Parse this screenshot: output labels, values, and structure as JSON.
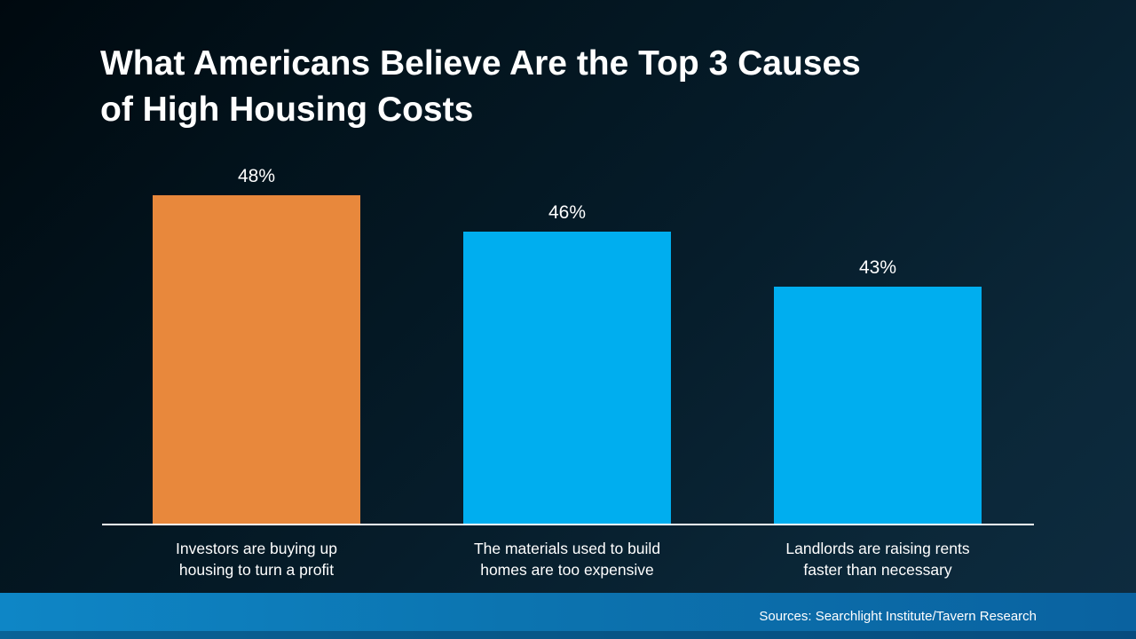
{
  "title": {
    "line1": "What Americans Believe Are the Top 3 Causes",
    "line2": "of High Housing Costs"
  },
  "footer": {
    "source_text": "Sources: Searchlight Institute/Tavern Research"
  },
  "colors": {
    "background_top": "#02121b",
    "background_bottom": "#0e2c40",
    "bar_orange": "#e8883c",
    "bar_cyan": "#00aeef",
    "footer_blue_left": "#0e86c6",
    "footer_blue_right": "#0a62a0",
    "baseline": "#ffffff",
    "text": "#ffffff"
  },
  "chart_data": {
    "type": "bar",
    "title": "What Americans Believe Are the Top 3 Causes of High Housing Costs",
    "categories": [
      "Investors are buying up housing to turn a profit",
      "The materials used to build homes are too expensive",
      "Landlords are raising rents faster than necessary"
    ],
    "category_lines": [
      [
        "Investors are buying up",
        "housing to turn a profit"
      ],
      [
        "The materials used to build",
        "homes are too expensive"
      ],
      [
        "Landlords are raising rents",
        "faster than necessary"
      ]
    ],
    "values": [
      48,
      46,
      43
    ],
    "value_labels": [
      "48%",
      "46%",
      "43%"
    ],
    "bar_colors": [
      "#e8883c",
      "#00aeef",
      "#00aeef"
    ],
    "xlabel": "",
    "ylabel": "",
    "ylim": [
      30,
      50
    ],
    "grid": false,
    "legend": false,
    "source": "Sources: Searchlight Institute/Tavern Research"
  }
}
